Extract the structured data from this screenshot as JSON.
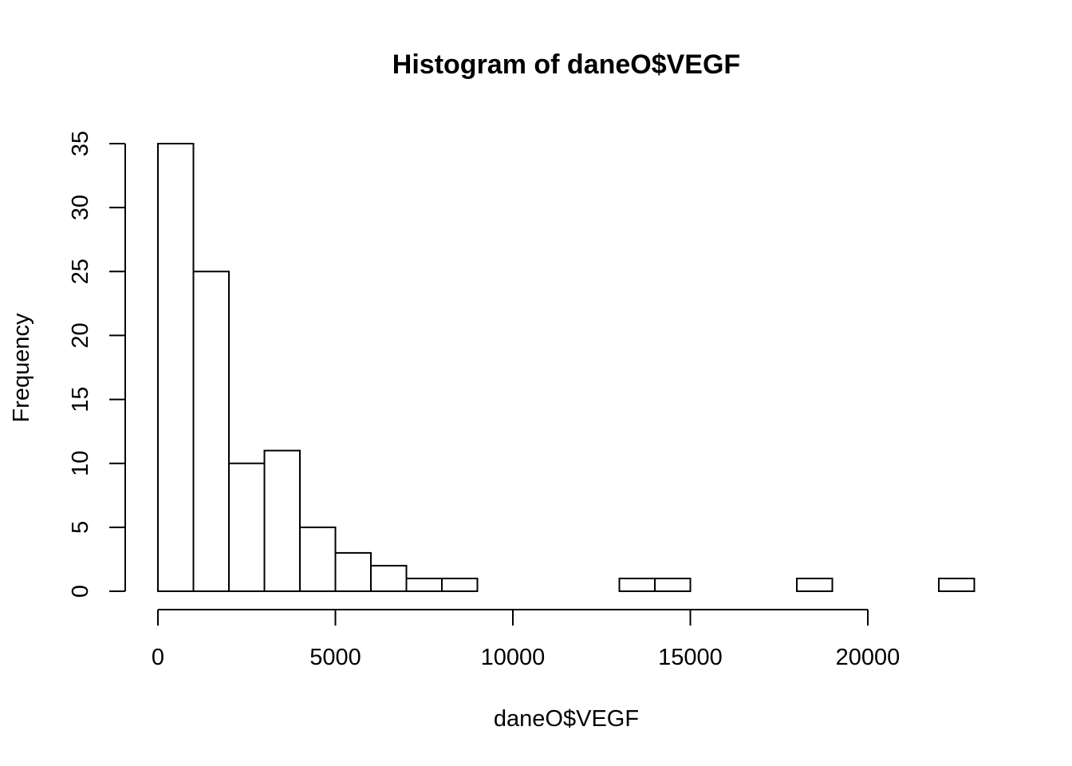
{
  "chart_data": {
    "type": "bar",
    "title": "Histogram of daneO$VEGF",
    "xlabel": "daneO$VEGF",
    "ylabel": "Frequency",
    "bin_width": 1000,
    "bins": [
      {
        "start": 0,
        "end": 1000,
        "count": 35
      },
      {
        "start": 1000,
        "end": 2000,
        "count": 25
      },
      {
        "start": 2000,
        "end": 3000,
        "count": 10
      },
      {
        "start": 3000,
        "end": 4000,
        "count": 11
      },
      {
        "start": 4000,
        "end": 5000,
        "count": 5
      },
      {
        "start": 5000,
        "end": 6000,
        "count": 3
      },
      {
        "start": 6000,
        "end": 7000,
        "count": 2
      },
      {
        "start": 7000,
        "end": 8000,
        "count": 1
      },
      {
        "start": 8000,
        "end": 9000,
        "count": 1
      },
      {
        "start": 9000,
        "end": 10000,
        "count": 0
      },
      {
        "start": 10000,
        "end": 11000,
        "count": 0
      },
      {
        "start": 11000,
        "end": 12000,
        "count": 0
      },
      {
        "start": 12000,
        "end": 13000,
        "count": 0
      },
      {
        "start": 13000,
        "end": 14000,
        "count": 1
      },
      {
        "start": 14000,
        "end": 15000,
        "count": 1
      },
      {
        "start": 15000,
        "end": 16000,
        "count": 0
      },
      {
        "start": 16000,
        "end": 17000,
        "count": 0
      },
      {
        "start": 17000,
        "end": 18000,
        "count": 0
      },
      {
        "start": 18000,
        "end": 19000,
        "count": 1
      },
      {
        "start": 19000,
        "end": 20000,
        "count": 0
      },
      {
        "start": 20000,
        "end": 21000,
        "count": 0
      },
      {
        "start": 21000,
        "end": 22000,
        "count": 0
      },
      {
        "start": 22000,
        "end": 23000,
        "count": 1
      }
    ],
    "xticks": [
      0,
      5000,
      10000,
      15000,
      20000
    ],
    "yticks": [
      0,
      5,
      10,
      15,
      20,
      25,
      30,
      35
    ],
    "xlim": [
      0,
      23000
    ],
    "ylim": [
      0,
      35
    ],
    "grid": false,
    "legend": "none"
  }
}
